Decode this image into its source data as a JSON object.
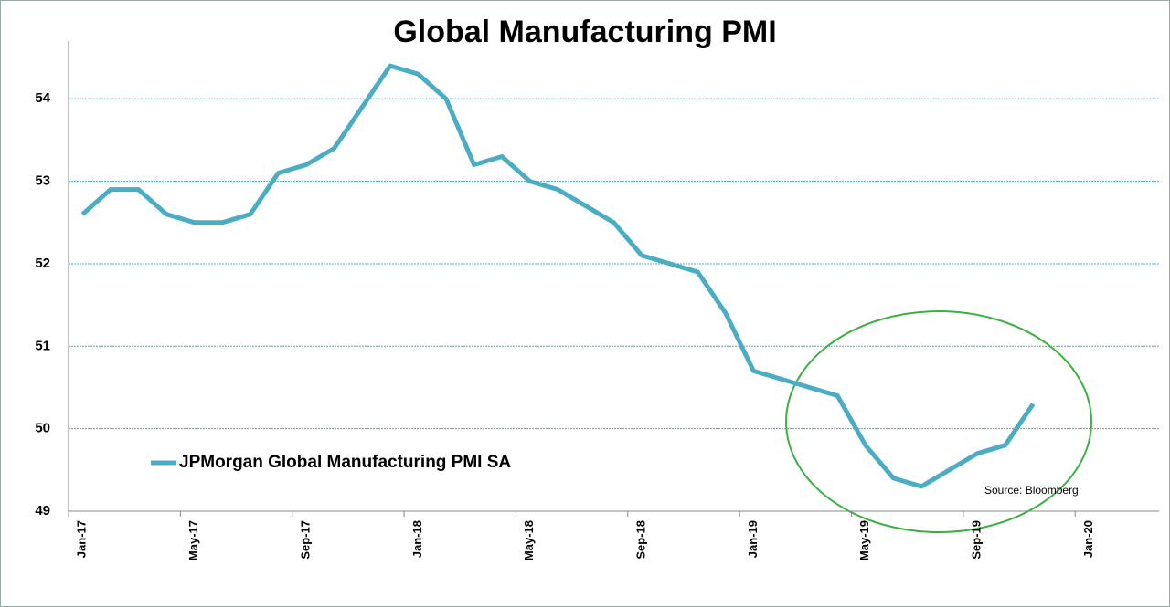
{
  "chart_data": {
    "type": "line",
    "title": "Global Manufacturing PMI",
    "annotation": "Source: Bloomberg",
    "categories": [
      "Jan-17",
      null,
      null,
      null,
      "May-17",
      null,
      null,
      null,
      "Sep-17",
      null,
      null,
      null,
      "Jan-18",
      null,
      null,
      null,
      "May-18",
      null,
      null,
      null,
      "Sep-18",
      null,
      null,
      null,
      "Jan-19",
      null,
      null,
      null,
      "May-19",
      null,
      null,
      null,
      "Sep-19",
      null,
      null,
      null,
      "Jan-20",
      null,
      null
    ],
    "series": [
      {
        "name": "JPMorgan Global Manufacturing PMI SA",
        "color": "#4bacc6",
        "values": [
          52.6,
          52.9,
          52.9,
          52.6,
          52.5,
          52.5,
          52.6,
          53.1,
          53.2,
          53.4,
          53.9,
          54.4,
          54.3,
          54.0,
          53.2,
          53.3,
          53.0,
          52.9,
          52.7,
          52.5,
          52.1,
          52.0,
          51.9,
          51.4,
          50.7,
          50.6,
          50.5,
          50.4,
          49.8,
          49.4,
          49.3,
          49.5,
          49.7,
          49.8,
          50.3,
          null,
          null,
          null,
          null
        ]
      }
    ],
    "ylim": [
      49,
      54.7
    ],
    "yticks": [
      49,
      50,
      51,
      52,
      53,
      54
    ],
    "grid": true,
    "legend": "lower left"
  }
}
